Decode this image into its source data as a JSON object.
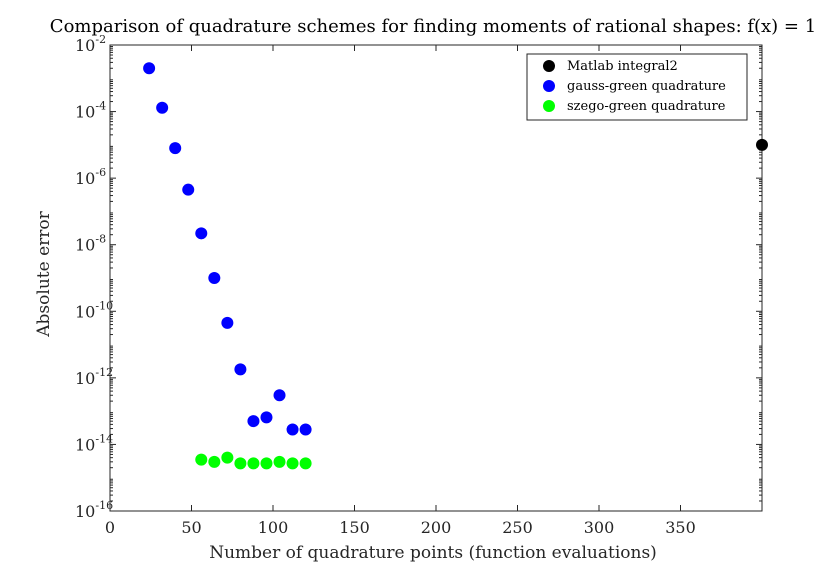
{
  "chart_data": {
    "type": "scatter",
    "title": "Comparison of quadrature schemes for finding moments of rational shapes: f(x) = 1",
    "xlabel": "Number of quadrature points (function evaluations)",
    "ylabel": "Absolute error",
    "xlim": [
      0,
      400
    ],
    "ylim_exponent": [
      -16,
      -2
    ],
    "yscale": "log",
    "grid": false,
    "legend_position": "top-right",
    "x_ticks": [
      "0",
      "50",
      "100",
      "150",
      "200",
      "250",
      "300",
      "350"
    ],
    "x_tick_values": [
      0,
      50,
      100,
      150,
      200,
      250,
      300,
      350
    ],
    "y_tick_base": "10",
    "y_tick_exponents": [
      "-16",
      "-14",
      "-12",
      "-10",
      "-8",
      "-6",
      "-4",
      "-2"
    ],
    "series": [
      {
        "name": "Matlab integral2",
        "color": "#000000",
        "points": [
          [
            400,
            1e-05
          ]
        ]
      },
      {
        "name": "gauss-green quadrature",
        "color": "#0000ff",
        "points": [
          [
            24,
            0.002
          ],
          [
            32,
            0.00013
          ],
          [
            40,
            8e-06
          ],
          [
            48,
            4.5e-07
          ],
          [
            56,
            2.2e-08
          ],
          [
            64,
            1e-09
          ],
          [
            72,
            4.5e-11
          ],
          [
            80,
            1.8e-12
          ],
          [
            88,
            5e-14
          ],
          [
            96,
            6.5e-14
          ],
          [
            104,
            3e-13
          ],
          [
            112,
            2.8e-14
          ],
          [
            120,
            2.8e-14
          ]
        ]
      },
      {
        "name": "szego-green quadrature",
        "color": "#00ff00",
        "points": [
          [
            56,
            3.5e-15
          ],
          [
            64,
            3e-15
          ],
          [
            72,
            4e-15
          ],
          [
            80,
            2.7e-15
          ],
          [
            88,
            2.7e-15
          ],
          [
            96,
            2.7e-15
          ],
          [
            104,
            3e-15
          ],
          [
            112,
            2.7e-15
          ],
          [
            120,
            2.7e-15
          ]
        ]
      }
    ]
  }
}
